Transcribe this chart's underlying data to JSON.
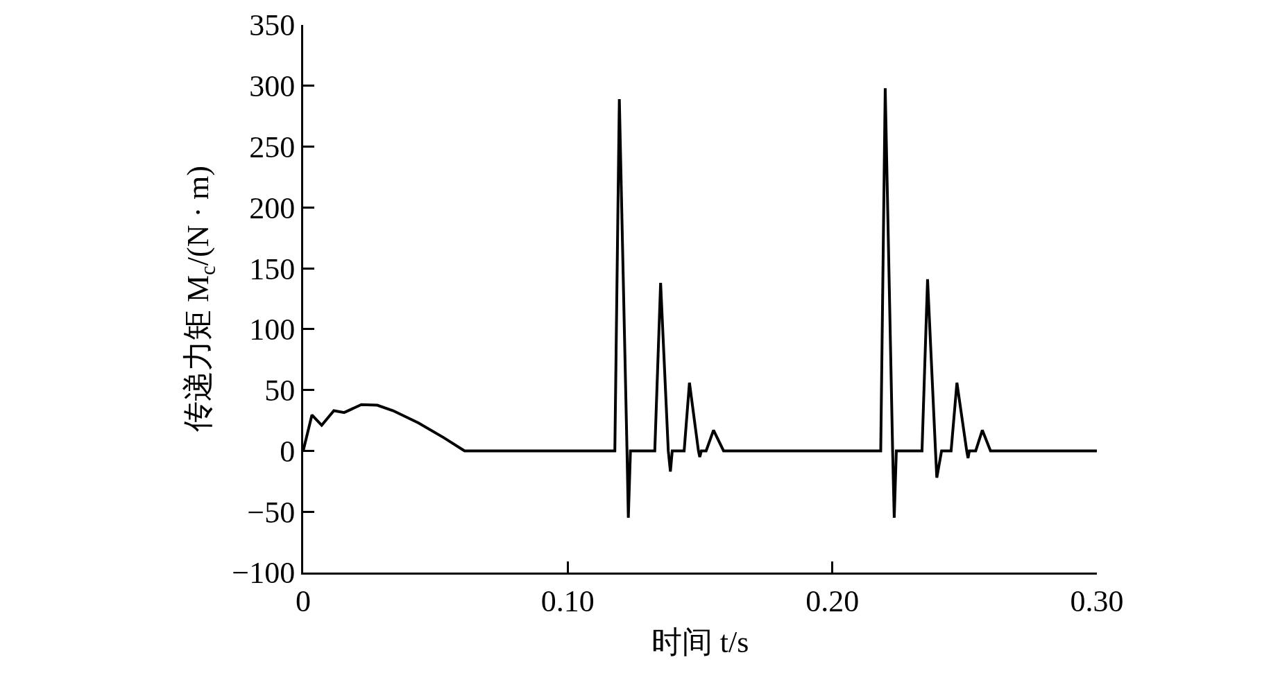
{
  "chart_data": {
    "type": "line",
    "xlabel": "时间 t/s",
    "ylabel": "传递力矩 M$_{c}$/(N · m)",
    "xlim": [
      0,
      0.3
    ],
    "xticks": [
      0,
      {
        "value": 0.1,
        "label": "0.10"
      },
      {
        "value": 0.2,
        "label": "0.20"
      },
      {
        "value": 0.3,
        "label": "0.30"
      }
    ],
    "ylim": [
      -100,
      350
    ],
    "yticks": [
      {
        "value": -100,
        "label": "−100"
      },
      {
        "value": -50,
        "label": "−50"
      },
      0,
      50,
      100,
      150,
      200,
      250,
      300,
      350
    ],
    "grid": false,
    "marker": "none",
    "line_style": "solid",
    "series": [
      {
        "color": "#000000",
        "x": [
          0,
          0.0033,
          0.007,
          0.0116,
          0.0155,
          0.022,
          0.028,
          0.034,
          0.0435,
          0.053,
          0.061,
          0.1178,
          0.1195,
          0.1224,
          0.1229,
          0.1237,
          0.1329,
          0.1351,
          0.138,
          0.1388,
          0.1395,
          0.144,
          0.146,
          0.1494,
          0.1499,
          0.1505,
          0.1523,
          0.1551,
          0.1589,
          0.2183,
          0.22,
          0.2228,
          0.2234,
          0.2242,
          0.2339,
          0.236,
          0.239,
          0.2395,
          0.2413,
          0.2449,
          0.2471,
          0.2508,
          0.2513,
          0.2518,
          0.2542,
          0.2567,
          0.2598,
          0.3
        ],
        "values": [
          0,
          29.5,
          21,
          33,
          31.5,
          38,
          37.5,
          33,
          23,
          11,
          0,
          0,
          289,
          0,
          -55,
          0,
          0,
          138,
          0,
          -17,
          0,
          0,
          56,
          0,
          -5,
          0,
          0,
          17,
          0,
          0,
          298,
          0,
          -55,
          0,
          0,
          141,
          0,
          -22,
          0,
          0,
          56,
          0,
          -6,
          0,
          0,
          17,
          0,
          0
        ]
      }
    ]
  }
}
